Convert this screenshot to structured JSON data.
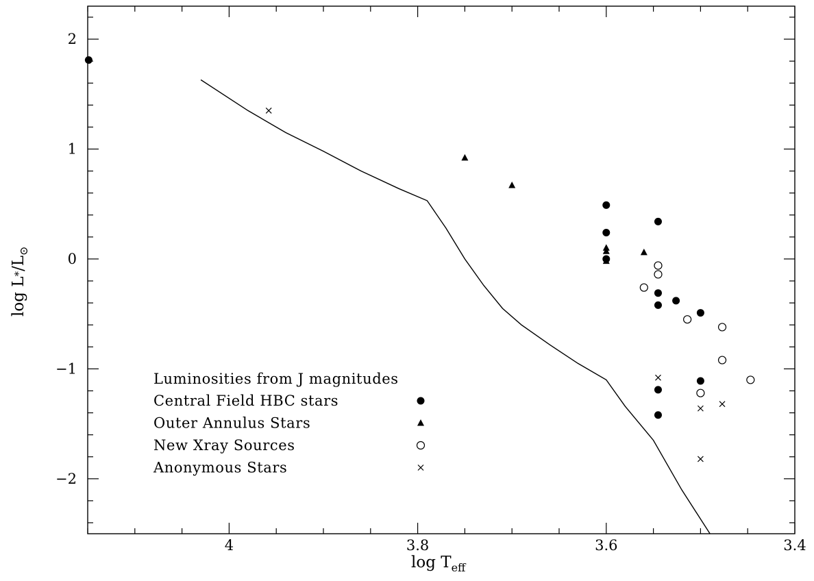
{
  "chart_data": {
    "type": "scatter",
    "xlabel": "log T",
    "xlabel_sub": "eff",
    "ylabel": "log L",
    "ylabel_sub": "*",
    "ylabel_tail": "/L",
    "ylabel_tail_sub": "⊙",
    "x_reversed": true,
    "xlim": [
      4.15,
      3.4
    ],
    "ylim": [
      -2.5,
      2.3
    ],
    "x_ticks": [
      {
        "value": 4.0,
        "label": "4"
      },
      {
        "value": 3.8,
        "label": "3.8"
      },
      {
        "value": 3.6,
        "label": "3.6"
      },
      {
        "value": 3.4,
        "label": "3.4"
      }
    ],
    "y_ticks": [
      {
        "value": 2,
        "label": "2"
      },
      {
        "value": 1,
        "label": "1"
      },
      {
        "value": 0,
        "label": "0"
      },
      {
        "value": -1,
        "label": "−1"
      },
      {
        "value": -2,
        "label": "−2"
      }
    ],
    "legend_title": "Luminosities from J magnitudes",
    "legend_position": "lower-left",
    "series": [
      {
        "name": "Central Field HBC stars",
        "marker": "filled-circle",
        "points": [
          [
            4.149,
            1.81
          ],
          [
            3.6,
            0.49
          ],
          [
            3.6,
            0.24
          ],
          [
            3.6,
            0.0
          ],
          [
            3.545,
            0.34
          ],
          [
            3.545,
            -0.31
          ],
          [
            3.545,
            -0.42
          ],
          [
            3.526,
            -0.38
          ],
          [
            3.5,
            -0.49
          ],
          [
            3.5,
            -1.11
          ],
          [
            3.545,
            -1.19
          ],
          [
            3.545,
            -1.42
          ]
        ]
      },
      {
        "name": "Outer Annulus Stars",
        "marker": "filled-triangle",
        "points": [
          [
            3.75,
            0.92
          ],
          [
            3.7,
            0.67
          ],
          [
            3.6,
            0.1
          ],
          [
            3.6,
            0.07
          ],
          [
            3.6,
            -0.02
          ],
          [
            3.56,
            0.06
          ]
        ]
      },
      {
        "name": "New Xray Sources",
        "marker": "open-circle",
        "points": [
          [
            3.545,
            -0.06
          ],
          [
            3.545,
            -0.14
          ],
          [
            3.56,
            -0.26
          ],
          [
            3.514,
            -0.55
          ],
          [
            3.477,
            -0.62
          ],
          [
            3.477,
            -0.92
          ],
          [
            3.447,
            -1.1
          ],
          [
            3.5,
            -1.22
          ]
        ]
      },
      {
        "name": "Anonymous Stars",
        "marker": "cross",
        "points": [
          [
            3.958,
            1.35
          ],
          [
            3.545,
            -1.08
          ],
          [
            3.5,
            -1.36
          ],
          [
            3.477,
            -1.32
          ],
          [
            3.5,
            -1.82
          ]
        ]
      }
    ],
    "curve": [
      [
        4.03,
        1.63
      ],
      [
        3.98,
        1.35
      ],
      [
        3.94,
        1.15
      ],
      [
        3.9,
        0.98
      ],
      [
        3.86,
        0.8
      ],
      [
        3.82,
        0.64
      ],
      [
        3.79,
        0.53
      ],
      [
        3.77,
        0.28
      ],
      [
        3.75,
        0.0
      ],
      [
        3.73,
        -0.24
      ],
      [
        3.71,
        -0.45
      ],
      [
        3.69,
        -0.6
      ],
      [
        3.66,
        -0.78
      ],
      [
        3.63,
        -0.95
      ],
      [
        3.6,
        -1.1
      ],
      [
        3.58,
        -1.34
      ],
      [
        3.55,
        -1.65
      ],
      [
        3.52,
        -2.1
      ],
      [
        3.49,
        -2.5
      ]
    ]
  }
}
